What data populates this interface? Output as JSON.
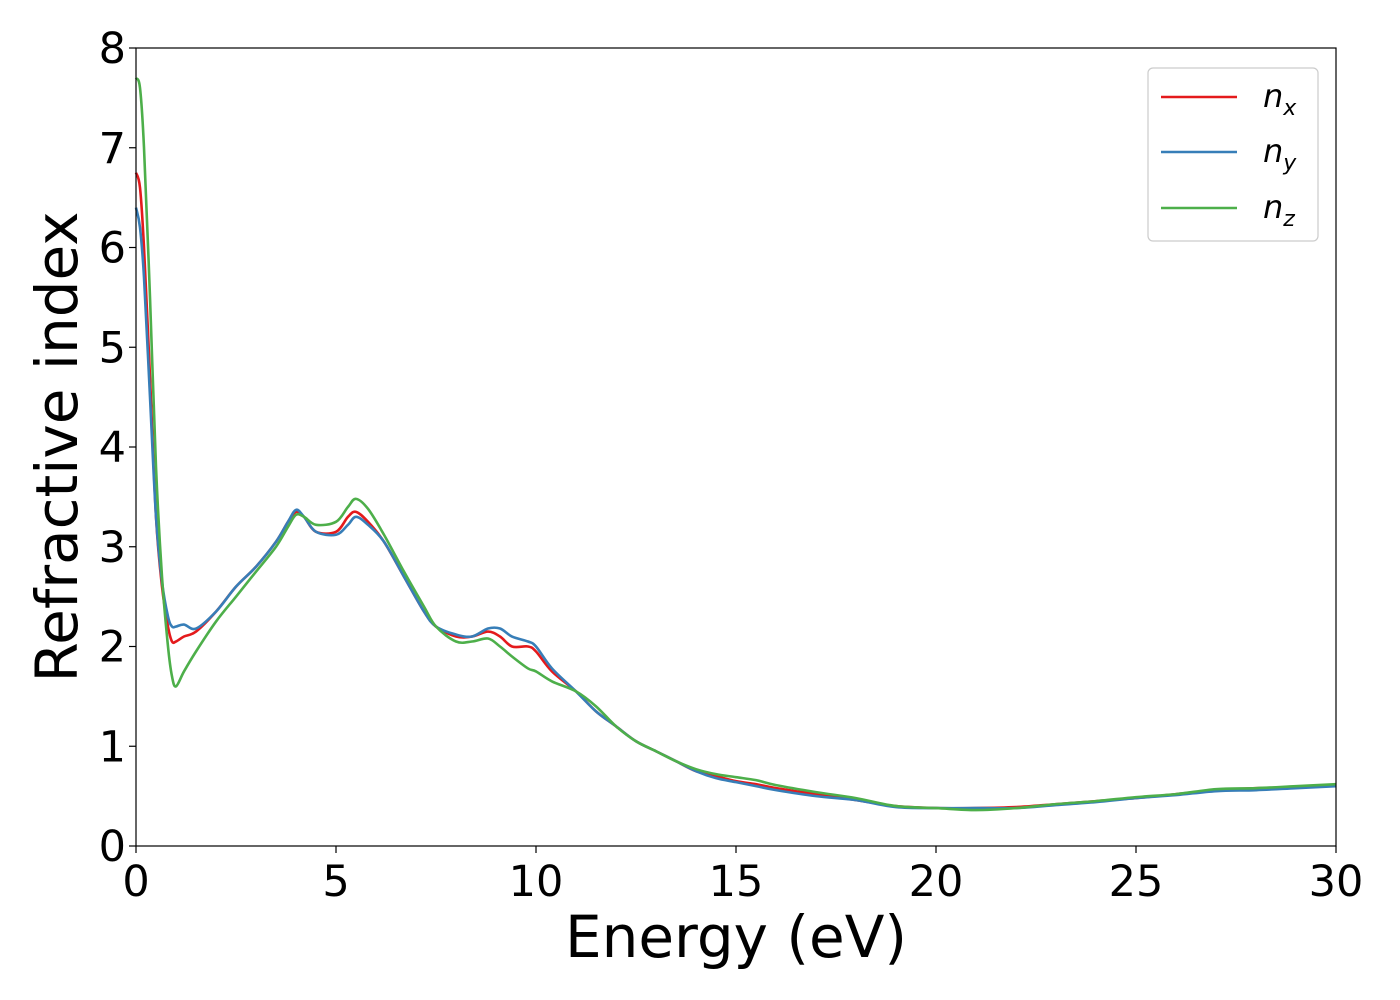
{
  "chart_data": {
    "type": "line",
    "title": "",
    "xlabel": "Energy (eV)",
    "ylabel": "Refractive index",
    "xlim": [
      0,
      30
    ],
    "ylim": [
      0,
      8
    ],
    "xticks": [
      0,
      5,
      10,
      15,
      20,
      25,
      30
    ],
    "yticks": [
      0,
      1,
      2,
      3,
      4,
      5,
      6,
      7,
      8
    ],
    "grid": false,
    "legend_position": "top-right",
    "series": [
      {
        "name": "n",
        "subscript": "x",
        "color": "#e41a1c",
        "x": [
          0,
          0.1,
          0.2,
          0.35,
          0.5,
          0.65,
          0.8,
          0.9,
          1.0,
          1.2,
          1.5,
          2.0,
          2.5,
          3.0,
          3.5,
          3.8,
          4.0,
          4.2,
          4.5,
          5.0,
          5.3,
          5.5,
          5.8,
          6.2,
          6.7,
          7.2,
          7.5,
          8.0,
          8.4,
          8.8,
          9.1,
          9.4,
          9.8,
          10.0,
          10.4,
          11.0,
          11.5,
          12.0,
          12.5,
          13.0,
          13.5,
          14.0,
          14.5,
          15.0,
          15.5,
          16.0,
          17.0,
          18.0,
          19.0,
          20.0,
          21.0,
          22.0,
          23.0,
          24.0,
          25.0,
          26.0,
          27.0,
          28.0,
          29.0,
          30.0
        ],
        "values": [
          6.75,
          6.6,
          6.0,
          4.7,
          3.3,
          2.6,
          2.2,
          2.05,
          2.05,
          2.1,
          2.15,
          2.35,
          2.6,
          2.8,
          3.05,
          3.25,
          3.35,
          3.3,
          3.15,
          3.15,
          3.3,
          3.35,
          3.25,
          3.05,
          2.7,
          2.35,
          2.2,
          2.1,
          2.1,
          2.15,
          2.1,
          2.0,
          2.0,
          1.95,
          1.75,
          1.55,
          1.35,
          1.2,
          1.05,
          0.95,
          0.85,
          0.75,
          0.7,
          0.65,
          0.62,
          0.58,
          0.52,
          0.46,
          0.4,
          0.38,
          0.38,
          0.39,
          0.42,
          0.45,
          0.48,
          0.52,
          0.56,
          0.58,
          0.59,
          0.61
        ]
      },
      {
        "name": "n",
        "subscript": "y",
        "color": "#377eb8",
        "x": [
          0,
          0.1,
          0.2,
          0.35,
          0.5,
          0.65,
          0.8,
          0.9,
          1.0,
          1.2,
          1.5,
          2.0,
          2.5,
          3.0,
          3.5,
          3.8,
          4.0,
          4.2,
          4.5,
          5.0,
          5.3,
          5.5,
          5.8,
          6.2,
          6.7,
          7.2,
          7.5,
          8.0,
          8.4,
          8.8,
          9.1,
          9.4,
          9.8,
          10.0,
          10.4,
          11.0,
          11.5,
          12.0,
          12.5,
          13.0,
          13.5,
          14.0,
          14.5,
          15.0,
          15.5,
          16.0,
          17.0,
          18.0,
          19.0,
          20.0,
          21.0,
          22.0,
          23.0,
          24.0,
          25.0,
          26.0,
          27.0,
          28.0,
          29.0,
          30.0
        ],
        "values": [
          6.4,
          6.2,
          5.7,
          4.5,
          3.3,
          2.65,
          2.3,
          2.2,
          2.2,
          2.22,
          2.18,
          2.35,
          2.6,
          2.8,
          3.05,
          3.25,
          3.37,
          3.3,
          3.15,
          3.12,
          3.22,
          3.3,
          3.22,
          3.05,
          2.7,
          2.35,
          2.2,
          2.12,
          2.1,
          2.18,
          2.18,
          2.1,
          2.05,
          2.0,
          1.78,
          1.55,
          1.35,
          1.2,
          1.05,
          0.95,
          0.85,
          0.75,
          0.68,
          0.64,
          0.6,
          0.56,
          0.5,
          0.46,
          0.39,
          0.38,
          0.38,
          0.38,
          0.41,
          0.44,
          0.48,
          0.51,
          0.55,
          0.56,
          0.58,
          0.6
        ]
      },
      {
        "name": "n",
        "subscript": "z",
        "color": "#4daf4a",
        "x": [
          0,
          0.1,
          0.2,
          0.35,
          0.5,
          0.65,
          0.8,
          0.9,
          1.0,
          1.2,
          1.5,
          2.0,
          2.5,
          3.0,
          3.5,
          3.8,
          4.0,
          4.2,
          4.5,
          5.0,
          5.3,
          5.5,
          5.8,
          6.2,
          6.7,
          7.2,
          7.5,
          8.0,
          8.4,
          8.8,
          9.1,
          9.4,
          9.8,
          10.0,
          10.4,
          11.0,
          11.5,
          12.0,
          12.5,
          13.0,
          13.5,
          14.0,
          14.5,
          15.0,
          15.5,
          16.0,
          17.0,
          18.0,
          19.0,
          20.0,
          21.0,
          22.0,
          23.0,
          24.0,
          25.0,
          26.0,
          27.0,
          28.0,
          29.0,
          30.0
        ],
        "values": [
          7.7,
          7.6,
          7.0,
          5.5,
          3.8,
          2.7,
          2.0,
          1.7,
          1.6,
          1.75,
          1.95,
          2.25,
          2.5,
          2.75,
          3.0,
          3.2,
          3.32,
          3.3,
          3.22,
          3.25,
          3.4,
          3.48,
          3.38,
          3.12,
          2.75,
          2.4,
          2.2,
          2.05,
          2.05,
          2.08,
          2.0,
          1.9,
          1.78,
          1.75,
          1.65,
          1.55,
          1.4,
          1.2,
          1.05,
          0.95,
          0.85,
          0.77,
          0.72,
          0.69,
          0.66,
          0.61,
          0.54,
          0.48,
          0.4,
          0.38,
          0.36,
          0.38,
          0.42,
          0.45,
          0.49,
          0.52,
          0.57,
          0.58,
          0.6,
          0.62
        ]
      }
    ]
  }
}
